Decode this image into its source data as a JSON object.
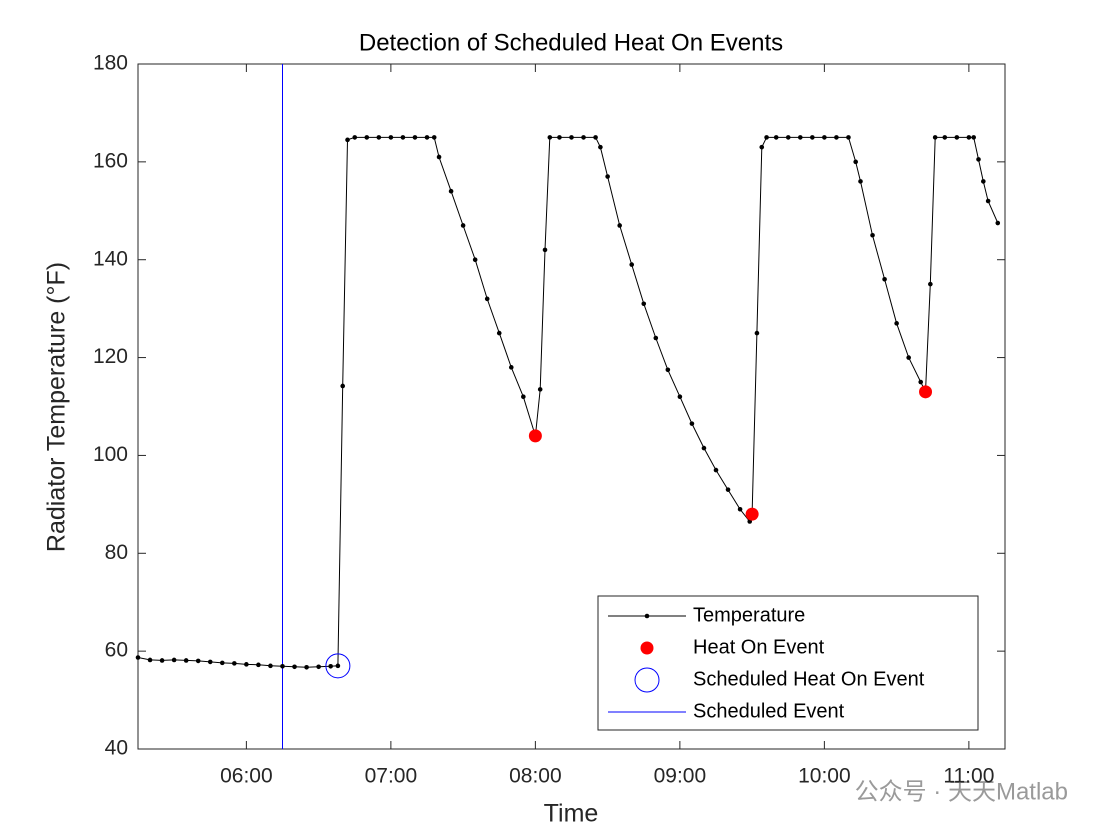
{
  "chart_data": {
    "type": "line",
    "title": "Detection of Scheduled Heat On Events",
    "xlabel": "Time",
    "ylabel": "Radiator Temperature (°F)",
    "xlim": [
      "05:15",
      "11:15"
    ],
    "xticks": [
      "06:00",
      "07:00",
      "08:00",
      "09:00",
      "10:00",
      "11:00"
    ],
    "ylim": [
      40,
      180
    ],
    "yticks": [
      40,
      60,
      80,
      100,
      120,
      140,
      160,
      180
    ],
    "legend": "lower right",
    "watermark": "公众号 · 天天Matlab",
    "series": [
      {
        "name": "Temperature",
        "color": "#000000",
        "marker": "dot",
        "x": [
          "05:15",
          "05:20",
          "05:25",
          "05:30",
          "05:35",
          "05:40",
          "05:45",
          "05:50",
          "05:55",
          "06:00",
          "06:05",
          "06:10",
          "06:15",
          "06:20",
          "06:25",
          "06:30",
          "06:35",
          "06:38",
          "06:40",
          "06:42",
          "06:45",
          "06:50",
          "06:55",
          "07:00",
          "07:05",
          "07:10",
          "07:15",
          "07:18",
          "07:20",
          "07:25",
          "07:30",
          "07:35",
          "07:40",
          "07:45",
          "07:50",
          "07:55",
          "08:00",
          "08:02",
          "08:04",
          "08:06",
          "08:10",
          "08:15",
          "08:20",
          "08:25",
          "08:27",
          "08:30",
          "08:35",
          "08:40",
          "08:45",
          "08:50",
          "08:55",
          "09:00",
          "09:05",
          "09:10",
          "09:15",
          "09:20",
          "09:25",
          "09:29",
          "09:30",
          "09:32",
          "09:34",
          "09:36",
          "09:40",
          "09:45",
          "09:50",
          "09:55",
          "10:00",
          "10:05",
          "10:10",
          "10:13",
          "10:15",
          "10:20",
          "10:25",
          "10:30",
          "10:35",
          "10:40",
          "10:42",
          "10:44",
          "10:46",
          "10:50",
          "10:55",
          "11:00",
          "11:02",
          "11:04",
          "11:06",
          "11:08",
          "11:12"
        ],
        "values": [
          58.7,
          58.2,
          58.1,
          58.2,
          58.1,
          58.0,
          57.8,
          57.6,
          57.5,
          57.3,
          57.2,
          57.0,
          56.9,
          56.8,
          56.7,
          56.8,
          56.9,
          57.0,
          114.2,
          164.5,
          165,
          165,
          165,
          165,
          165,
          165,
          165,
          165,
          161,
          154,
          147,
          140,
          132,
          125,
          118,
          112,
          104,
          113.5,
          142,
          165,
          165,
          165,
          165,
          165,
          163,
          157,
          147,
          139,
          131,
          124,
          117.5,
          112,
          106.5,
          101.5,
          97,
          93,
          89,
          86.5,
          88,
          125,
          163,
          165,
          165,
          165,
          165,
          165,
          165,
          165,
          165,
          160,
          156,
          145,
          136,
          127,
          120,
          115,
          113,
          135,
          165,
          165,
          165,
          165,
          165,
          160.5,
          156,
          152,
          147.5
        ]
      },
      {
        "name": "Heat On Event",
        "color": "#ff0000",
        "marker": "filled-circle",
        "x": [
          "08:00",
          "09:30",
          "10:42"
        ],
        "values": [
          104,
          88,
          113
        ]
      },
      {
        "name": "Scheduled Heat On Event",
        "color": "#0000ff",
        "marker": "open-circle",
        "x": [
          "06:38"
        ],
        "values": [
          57
        ]
      },
      {
        "name": "Scheduled Event",
        "color": "#0000ff",
        "marker": "vline",
        "x": [
          "06:15"
        ]
      }
    ]
  }
}
